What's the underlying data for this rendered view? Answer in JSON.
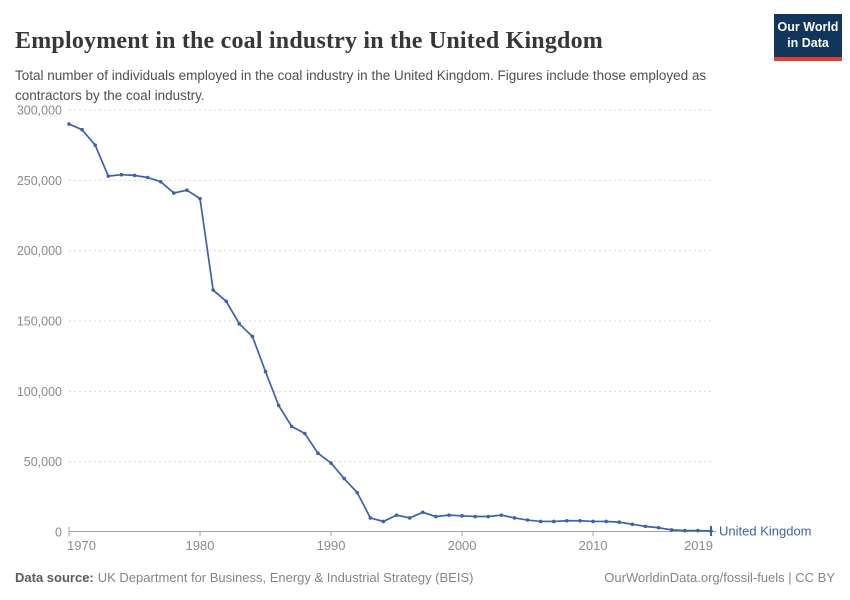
{
  "header": {
    "title": "Employment in the coal industry in the United Kingdom",
    "subtitle": "Total number of individuals employed in the coal industry in the United Kingdom. Figures include those employed as contractors by the coal industry.",
    "logo": {
      "line1": "Our World",
      "line2": "in Data"
    }
  },
  "chart_data": {
    "type": "line",
    "title": "Employment in the coal industry in the United Kingdom",
    "xlabel": "",
    "ylabel": "",
    "xlim": [
      1970,
      2019
    ],
    "ylim": [
      0,
      300000
    ],
    "x_ticks": [
      1970,
      1980,
      1990,
      2000,
      2010,
      2019
    ],
    "y_ticks": [
      0,
      50000,
      100000,
      150000,
      200000,
      250000,
      300000
    ],
    "grid": "horizontal-dashed",
    "legend_position": "entity-label-right-of-line",
    "series": [
      {
        "name": "United Kingdom",
        "x": [
          1970,
          1971,
          1972,
          1973,
          1974,
          1975,
          1976,
          1977,
          1978,
          1979,
          1980,
          1981,
          1982,
          1983,
          1984,
          1985,
          1986,
          1987,
          1988,
          1989,
          1990,
          1991,
          1992,
          1993,
          1994,
          1995,
          1996,
          1997,
          1998,
          1999,
          2000,
          2001,
          2002,
          2003,
          2004,
          2005,
          2006,
          2007,
          2008,
          2009,
          2010,
          2011,
          2012,
          2013,
          2014,
          2015,
          2016,
          2017,
          2018,
          2019
        ],
        "values": [
          290000,
          286000,
          275000,
          253000,
          254000,
          253500,
          252000,
          249000,
          241000,
          243000,
          237000,
          172000,
          164000,
          148000,
          139000,
          114000,
          90000,
          75000,
          70000,
          56000,
          49000,
          38000,
          28000,
          10000,
          7500,
          12000,
          10000,
          14000,
          11000,
          12000,
          11500,
          11000,
          11000,
          12000,
          10000,
          8500,
          7500,
          7500,
          8000,
          8000,
          7500,
          7500,
          7000,
          5500,
          4000,
          3000,
          1500,
          1000,
          1000,
          700
        ]
      }
    ]
  },
  "footer": {
    "source_label": "Data source:",
    "source_text": "UK Department for Business, Energy & Industrial Strategy (BEIS)",
    "credit": "OurWorldinData.org/fossil-fuels | CC BY"
  },
  "colors": {
    "line": "#3d62a9",
    "entity_label": "#3d62a9",
    "grid": "#dadada",
    "axis": "#a3a3a3",
    "tick_text": "#8b8b8b",
    "title": "#383636",
    "subtitle": "#4f4f4f",
    "logo_bg": "#12355b",
    "logo_red": "#e23d33"
  }
}
